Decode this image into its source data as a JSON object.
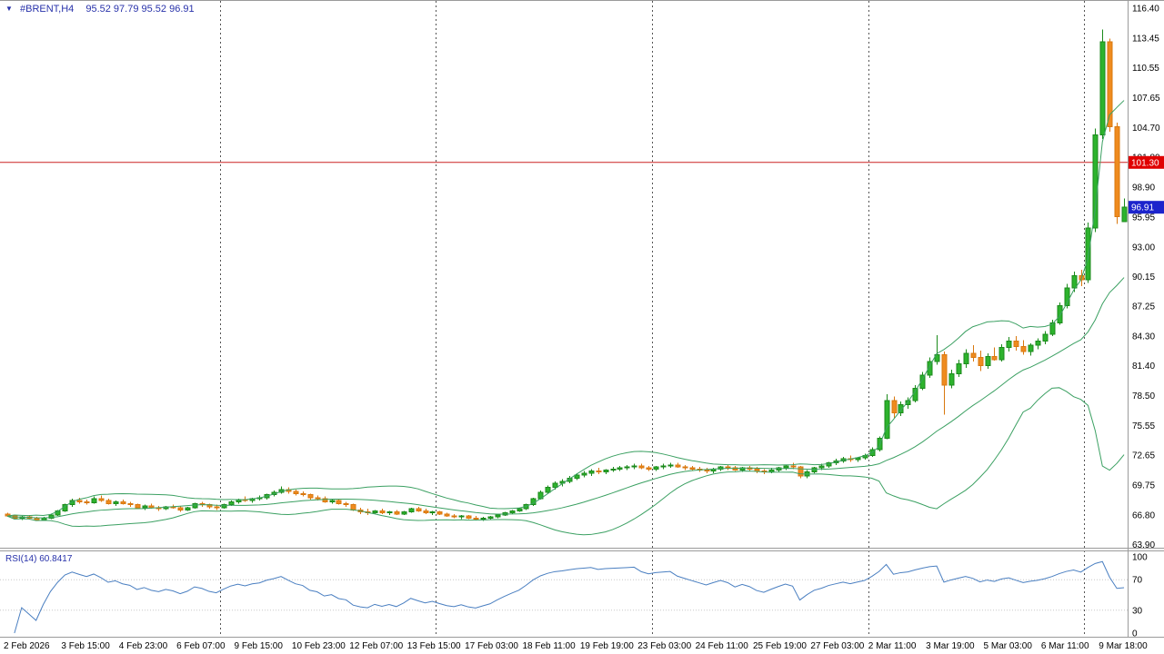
{
  "header": {
    "marker": "▼"
  },
  "colors": {
    "background": "#ffffff",
    "header_text": "#2832aa",
    "up_fill": "#2db32d",
    "up_stroke": "#1b8a1b",
    "down_fill": "#ef8b1f",
    "down_stroke": "#d9780f",
    "bands": "#3ba062",
    "rsi_line": "#4a7fc1",
    "hline": "#cc2222",
    "hline_label_bg": "#e00000",
    "price_label_bg": "#1c24cc",
    "axis_text": "#000000",
    "grid_dash": "#555555",
    "frame": "#9a9a9a",
    "rsi_levels": "#c8c8c8"
  },
  "chart_data": {
    "type": "candlestick",
    "title": "#BRENT,H4",
    "symbol": "#BRENT",
    "timeframe": "H4",
    "ohlc_display": "95.52 97.79 95.52 96.91",
    "ylim": [
      63.6,
      117.1
    ],
    "price_tick_labels": [
      "116.40",
      "113.45",
      "110.55",
      "107.65",
      "104.70",
      "101.80",
      "98.90",
      "95.95",
      "93.00",
      "90.15",
      "87.25",
      "84.30",
      "81.40",
      "78.50",
      "75.55",
      "72.65",
      "69.75",
      "66.80",
      "63.90"
    ],
    "time_labels": [
      "2 Feb 2026",
      "3 Feb 15:00",
      "4 Feb 23:00",
      "6 Feb 07:00",
      "9 Feb 15:00",
      "10 Feb 23:00",
      "12 Feb 07:00",
      "13 Feb 15:00",
      "17 Feb 03:00",
      "18 Feb 11:00",
      "19 Feb 19:00",
      "23 Feb 03:00",
      "24 Feb 11:00",
      "25 Feb 19:00",
      "27 Feb 03:00",
      "2 Mar 11:00",
      "3 Mar 19:00",
      "5 Mar 03:00",
      "6 Mar 11:00",
      "9 Mar 18:00"
    ],
    "label_every_n_bars": 8,
    "week_separator_indices": [
      30,
      60,
      90,
      120,
      150
    ],
    "current_price": {
      "text": "96.91",
      "value": 96.91
    },
    "horizontal_line": {
      "text": "101.30",
      "value": 101.3
    },
    "indicators": {
      "bollinger": {
        "period": 20,
        "deviations": 2
      },
      "rsi": {
        "period": 14,
        "value_text": "RSI(14) 60.8417",
        "axis_labels": [
          "100",
          "70",
          "30",
          "0"
        ],
        "axis_values": [
          100,
          70,
          30,
          0
        ],
        "levels": [
          70,
          30
        ],
        "ylim": [
          0,
          100
        ]
      }
    },
    "candles": [
      [
        66.9,
        67.0,
        66.6,
        66.7
      ],
      [
        66.7,
        66.8,
        66.4,
        66.5
      ],
      [
        66.5,
        66.7,
        66.3,
        66.6
      ],
      [
        66.6,
        66.8,
        66.4,
        66.5
      ],
      [
        66.5,
        66.6,
        66.2,
        66.3
      ],
      [
        66.3,
        66.6,
        66.2,
        66.5
      ],
      [
        66.5,
        66.9,
        66.4,
        66.8
      ],
      [
        66.8,
        67.3,
        66.7,
        67.2
      ],
      [
        67.2,
        67.9,
        67.1,
        67.8
      ],
      [
        67.8,
        68.4,
        67.6,
        68.2
      ],
      [
        68.2,
        68.5,
        67.9,
        68.1
      ],
      [
        68.1,
        68.3,
        67.8,
        68.0
      ],
      [
        68.0,
        68.6,
        67.9,
        68.4
      ],
      [
        68.4,
        68.7,
        68.1,
        68.2
      ],
      [
        68.2,
        68.4,
        67.8,
        67.9
      ],
      [
        67.9,
        68.2,
        67.7,
        68.1
      ],
      [
        68.1,
        68.3,
        67.8,
        67.9
      ],
      [
        67.9,
        68.1,
        67.6,
        67.8
      ],
      [
        67.8,
        67.9,
        67.4,
        67.5
      ],
      [
        67.5,
        67.8,
        67.3,
        67.7
      ],
      [
        67.7,
        67.9,
        67.4,
        67.5
      ],
      [
        67.5,
        67.7,
        67.2,
        67.4
      ],
      [
        67.4,
        67.7,
        67.3,
        67.6
      ],
      [
        67.6,
        67.8,
        67.4,
        67.5
      ],
      [
        67.5,
        67.7,
        67.1,
        67.3
      ],
      [
        67.3,
        67.6,
        67.2,
        67.5
      ],
      [
        67.5,
        68.0,
        67.4,
        67.9
      ],
      [
        67.9,
        68.1,
        67.6,
        67.8
      ],
      [
        67.8,
        67.9,
        67.4,
        67.6
      ],
      [
        67.6,
        67.8,
        67.3,
        67.5
      ],
      [
        67.5,
        67.9,
        67.4,
        67.8
      ],
      [
        67.8,
        68.2,
        67.7,
        68.1
      ],
      [
        68.1,
        68.4,
        67.9,
        68.3
      ],
      [
        68.3,
        68.6,
        68.1,
        68.2
      ],
      [
        68.2,
        68.5,
        68.0,
        68.4
      ],
      [
        68.4,
        68.7,
        68.2,
        68.5
      ],
      [
        68.5,
        68.9,
        68.3,
        68.8
      ],
      [
        68.8,
        69.2,
        68.6,
        69.0
      ],
      [
        69.0,
        69.6,
        68.9,
        69.3
      ],
      [
        69.3,
        69.5,
        68.9,
        69.1
      ],
      [
        69.1,
        69.3,
        68.7,
        68.9
      ],
      [
        68.9,
        69.1,
        68.6,
        68.8
      ],
      [
        68.8,
        68.9,
        68.3,
        68.5
      ],
      [
        68.5,
        68.7,
        68.2,
        68.4
      ],
      [
        68.4,
        68.6,
        68.0,
        68.1
      ],
      [
        68.1,
        68.4,
        67.9,
        68.2
      ],
      [
        68.2,
        68.3,
        67.8,
        67.9
      ],
      [
        67.9,
        68.1,
        67.6,
        67.8
      ],
      [
        67.8,
        67.9,
        67.2,
        67.3
      ],
      [
        67.3,
        67.5,
        66.9,
        67.1
      ],
      [
        67.1,
        67.4,
        66.8,
        67.0
      ],
      [
        67.0,
        67.3,
        66.9,
        67.2
      ],
      [
        67.2,
        67.4,
        66.9,
        67.0
      ],
      [
        67.0,
        67.2,
        66.8,
        67.1
      ],
      [
        67.1,
        67.3,
        66.8,
        66.9
      ],
      [
        66.9,
        67.2,
        66.8,
        67.1
      ],
      [
        67.1,
        67.5,
        67.0,
        67.4
      ],
      [
        67.4,
        67.6,
        67.1,
        67.2
      ],
      [
        67.2,
        67.4,
        66.9,
        67.0
      ],
      [
        67.0,
        67.2,
        66.8,
        67.1
      ],
      [
        67.1,
        67.2,
        66.8,
        66.9
      ],
      [
        66.9,
        67.0,
        66.6,
        66.7
      ],
      [
        66.7,
        66.9,
        66.5,
        66.6
      ],
      [
        66.6,
        66.8,
        66.4,
        66.7
      ],
      [
        66.7,
        66.8,
        66.4,
        66.5
      ],
      [
        66.5,
        66.7,
        66.3,
        66.4
      ],
      [
        66.4,
        66.6,
        66.2,
        66.5
      ],
      [
        66.5,
        66.7,
        66.3,
        66.6
      ],
      [
        66.6,
        66.9,
        66.5,
        66.8
      ],
      [
        66.8,
        67.1,
        66.7,
        67.0
      ],
      [
        67.0,
        67.3,
        66.9,
        67.2
      ],
      [
        67.2,
        67.5,
        67.1,
        67.4
      ],
      [
        67.4,
        67.9,
        67.3,
        67.8
      ],
      [
        67.8,
        68.5,
        67.7,
        68.4
      ],
      [
        68.4,
        69.2,
        68.3,
        69.0
      ],
      [
        69.0,
        69.7,
        68.9,
        69.5
      ],
      [
        69.5,
        70.1,
        69.3,
        69.9
      ],
      [
        69.9,
        70.3,
        69.6,
        70.1
      ],
      [
        70.1,
        70.6,
        69.9,
        70.4
      ],
      [
        70.4,
        70.9,
        70.2,
        70.7
      ],
      [
        70.7,
        71.1,
        70.5,
        70.9
      ],
      [
        70.9,
        71.3,
        70.6,
        71.1
      ],
      [
        71.1,
        71.4,
        70.8,
        71.0
      ],
      [
        71.0,
        71.3,
        70.8,
        71.2
      ],
      [
        71.2,
        71.5,
        71.0,
        71.3
      ],
      [
        71.3,
        71.6,
        71.1,
        71.4
      ],
      [
        71.4,
        71.7,
        71.2,
        71.5
      ],
      [
        71.5,
        71.8,
        71.3,
        71.6
      ],
      [
        71.6,
        71.8,
        71.3,
        71.4
      ],
      [
        71.4,
        71.6,
        71.1,
        71.3
      ],
      [
        71.3,
        71.6,
        71.1,
        71.5
      ],
      [
        71.5,
        71.8,
        71.3,
        71.6
      ],
      [
        71.6,
        71.9,
        71.4,
        71.7
      ],
      [
        71.7,
        71.9,
        71.4,
        71.5
      ],
      [
        71.5,
        71.7,
        71.2,
        71.4
      ],
      [
        71.4,
        71.6,
        71.1,
        71.3
      ],
      [
        71.3,
        71.5,
        71.0,
        71.2
      ],
      [
        71.2,
        71.4,
        70.9,
        71.1
      ],
      [
        71.1,
        71.4,
        70.9,
        71.3
      ],
      [
        71.3,
        71.6,
        71.1,
        71.5
      ],
      [
        71.5,
        71.7,
        71.2,
        71.4
      ],
      [
        71.4,
        71.6,
        71.1,
        71.2
      ],
      [
        71.2,
        71.5,
        71.0,
        71.4
      ],
      [
        71.4,
        71.6,
        71.1,
        71.3
      ],
      [
        71.3,
        71.5,
        70.9,
        71.1
      ],
      [
        71.1,
        71.3,
        70.8,
        71.0
      ],
      [
        71.0,
        71.4,
        70.9,
        71.2
      ],
      [
        71.2,
        71.5,
        71.0,
        71.4
      ],
      [
        71.4,
        71.7,
        71.2,
        71.6
      ],
      [
        71.6,
        71.9,
        71.3,
        71.5
      ],
      [
        71.5,
        71.6,
        70.4,
        70.6
      ],
      [
        70.6,
        71.2,
        70.4,
        71.0
      ],
      [
        71.0,
        71.5,
        70.9,
        71.4
      ],
      [
        71.4,
        71.8,
        71.2,
        71.6
      ],
      [
        71.6,
        72.0,
        71.4,
        71.9
      ],
      [
        71.9,
        72.3,
        71.7,
        72.1
      ],
      [
        72.1,
        72.5,
        71.9,
        72.3
      ],
      [
        72.3,
        72.6,
        72.0,
        72.2
      ],
      [
        72.2,
        72.5,
        72.0,
        72.4
      ],
      [
        72.4,
        72.8,
        72.2,
        72.6
      ],
      [
        72.6,
        73.4,
        72.5,
        73.2
      ],
      [
        73.2,
        74.5,
        73.0,
        74.3
      ],
      [
        74.3,
        78.6,
        74.2,
        78.0
      ],
      [
        78.0,
        78.4,
        76.3,
        76.8
      ],
      [
        76.8,
        77.9,
        76.5,
        77.6
      ],
      [
        77.6,
        78.3,
        77.2,
        78.0
      ],
      [
        78.0,
        79.5,
        77.8,
        79.2
      ],
      [
        79.2,
        80.8,
        79.0,
        80.5
      ],
      [
        80.5,
        82.2,
        80.2,
        81.8
      ],
      [
        81.8,
        84.4,
        81.5,
        82.5
      ],
      [
        82.5,
        82.8,
        76.6,
        79.5
      ],
      [
        79.5,
        81.0,
        79.2,
        80.6
      ],
      [
        80.6,
        82.0,
        80.3,
        81.6
      ],
      [
        81.6,
        83.0,
        81.2,
        82.6
      ],
      [
        82.6,
        83.4,
        81.8,
        82.2
      ],
      [
        82.2,
        82.9,
        80.9,
        81.4
      ],
      [
        81.4,
        82.6,
        81.1,
        82.3
      ],
      [
        82.3,
        83.2,
        81.9,
        82.0
      ],
      [
        82.0,
        83.5,
        81.8,
        83.2
      ],
      [
        83.2,
        84.2,
        82.8,
        83.8
      ],
      [
        83.8,
        84.3,
        82.9,
        83.3
      ],
      [
        83.3,
        83.9,
        82.5,
        82.8
      ],
      [
        82.8,
        83.6,
        82.4,
        83.4
      ],
      [
        83.4,
        84.1,
        83.0,
        83.8
      ],
      [
        83.8,
        84.8,
        83.5,
        84.5
      ],
      [
        84.5,
        85.9,
        84.3,
        85.6
      ],
      [
        85.6,
        87.6,
        85.4,
        87.3
      ],
      [
        87.3,
        89.4,
        87.0,
        89.0
      ],
      [
        89.0,
        90.6,
        88.6,
        90.2
      ],
      [
        90.2,
        90.8,
        89.2,
        89.8
      ],
      [
        89.8,
        95.4,
        89.5,
        94.9
      ],
      [
        94.9,
        104.6,
        94.5,
        104.0
      ],
      [
        104.0,
        114.3,
        103.6,
        113.1
      ],
      [
        113.1,
        113.4,
        104.3,
        104.8
      ],
      [
        104.8,
        105.2,
        95.3,
        96.0
      ],
      [
        95.52,
        97.79,
        95.52,
        96.91
      ]
    ]
  }
}
